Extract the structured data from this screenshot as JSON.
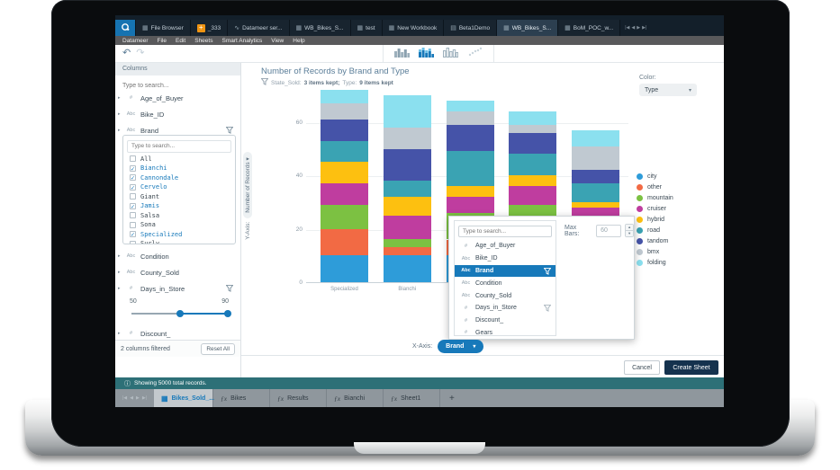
{
  "browser_tabs": {
    "items": [
      {
        "label": "",
        "icon": "datameer-logo",
        "active": false
      },
      {
        "label": "File Browser",
        "icon": "grid",
        "active": false
      },
      {
        "label": "_333",
        "icon": "plus-orange",
        "active": false
      },
      {
        "label": "Datameer ser...",
        "icon": "link",
        "active": false
      },
      {
        "label": "WB_Bikes_S...",
        "icon": "table",
        "active": false
      },
      {
        "label": "test",
        "icon": "table",
        "active": false
      },
      {
        "label": "New Workbook",
        "icon": "table",
        "active": false
      },
      {
        "label": "Beta1Demo",
        "icon": "chart",
        "active": false
      },
      {
        "label": "WB_Bikes_S...",
        "icon": "table",
        "active": true
      },
      {
        "label": "BoM_POC_w...",
        "icon": "table",
        "active": false
      }
    ],
    "nav_glyphs": [
      "|◀",
      "◀",
      "▶",
      "▶|"
    ]
  },
  "menu_bar": {
    "items": [
      "Datameer",
      "File",
      "Edit",
      "Sheets",
      "Smart Analytics",
      "View",
      "Help"
    ]
  },
  "toolbar": {
    "chart_types": [
      "grouped-bar",
      "stacked-bar",
      "column-chart",
      "scatter"
    ],
    "selected": "stacked-bar"
  },
  "columns_panel": {
    "header": "Columns",
    "search_placeholder": "Type to search...",
    "fields_top": [
      {
        "type": "#",
        "name": "Age_of_Buyer",
        "filtered": false
      },
      {
        "type": "Abc",
        "name": "Bike_ID",
        "filtered": false
      },
      {
        "type": "Abc",
        "name": "Brand",
        "filtered": true
      }
    ],
    "brand_filter": {
      "search_placeholder": "Type to search...",
      "options": [
        {
          "label": "All",
          "checked": false
        },
        {
          "label": "Bianchi",
          "checked": true
        },
        {
          "label": "Cannondale",
          "checked": true
        },
        {
          "label": "Cervelo",
          "checked": true
        },
        {
          "label": "Giant",
          "checked": false
        },
        {
          "label": "Jamis",
          "checked": true
        },
        {
          "label": "Salsa",
          "checked": false
        },
        {
          "label": "Sona",
          "checked": false
        },
        {
          "label": "Specialized",
          "checked": true
        },
        {
          "label": "Surly",
          "checked": false
        }
      ]
    },
    "fields_bottom": [
      {
        "type": "Abc",
        "name": "Condition",
        "filtered": false
      },
      {
        "type": "Abc",
        "name": "County_Sold",
        "filtered": false
      },
      {
        "type": "#",
        "name": "Days_in_Store",
        "filtered": true
      }
    ],
    "slider": {
      "min_label": "50",
      "max_label": "90"
    },
    "field_partial": {
      "type": "#",
      "name": "Discount_"
    },
    "footer": {
      "status": "2 columns filtered",
      "reset_label": "Reset All"
    }
  },
  "chart": {
    "title": "Number of Records by Brand and Type",
    "filter_note_parts": [
      {
        "t": "State_Sold:",
        "b": false
      },
      {
        "t": "3 items kept;",
        "b": true
      },
      {
        "t": "Type:",
        "b": false
      },
      {
        "t": "9 items kept",
        "b": true
      }
    ],
    "y_axis_label": "Y-Axis:",
    "y_axis_value": "Number of Records ▾",
    "color_label": "Color:",
    "color_value": "Type",
    "x_axis_label": "X-Axis:",
    "x_axis_value": "Brand"
  },
  "chart_data": {
    "type": "bar",
    "stacked": true,
    "title": "Number of Records by Brand and Type",
    "xlabel": "Brand",
    "ylabel": "Number of Records",
    "categories": [
      "Specialized",
      "Bianchi",
      "Cannondale",
      "Cervelo",
      "Jamis"
    ],
    "visible_category_labels": [
      "Specialized",
      "Bianchi"
    ],
    "y_ticks": [
      0,
      20,
      40,
      60
    ],
    "ylim": [
      0,
      75
    ],
    "grid": true,
    "legend_position": "right",
    "series": [
      {
        "name": "city",
        "color": "#2e9cd9",
        "values": [
          10,
          10,
          10,
          10,
          10
        ]
      },
      {
        "name": "other",
        "color": "#f26a44",
        "values": [
          10,
          3,
          6,
          6,
          5
        ]
      },
      {
        "name": "mountain",
        "color": "#7cc142",
        "values": [
          9,
          3,
          10,
          13,
          8
        ]
      },
      {
        "name": "cruiser",
        "color": "#bf3d9f",
        "values": [
          8,
          9,
          6,
          7,
          5
        ]
      },
      {
        "name": "hybrid",
        "color": "#fdc010",
        "values": [
          8,
          7,
          4,
          4,
          2
        ]
      },
      {
        "name": "road",
        "color": "#3aa3b3",
        "values": [
          8,
          6,
          13,
          8,
          7
        ]
      },
      {
        "name": "tandom",
        "color": "#4553a8",
        "values": [
          8,
          12,
          10,
          8,
          5
        ]
      },
      {
        "name": "bmx",
        "color": "#c0c9d1",
        "values": [
          6,
          8,
          5,
          3,
          9
        ]
      },
      {
        "name": "folding",
        "color": "#8be0ef",
        "values": [
          5,
          12,
          4,
          5,
          6
        ]
      }
    ],
    "totals": [
      72,
      70,
      68,
      64,
      57
    ]
  },
  "popup": {
    "search_placeholder": "Type to search...",
    "fields": [
      {
        "type": "#",
        "name": "Age_of_Buyer",
        "selected": false,
        "filtered": false
      },
      {
        "type": "Abc",
        "name": "Bike_ID",
        "selected": false,
        "filtered": false
      },
      {
        "type": "Abc",
        "name": "Brand",
        "selected": true,
        "filtered": true
      },
      {
        "type": "Abc",
        "name": "Condition",
        "selected": false,
        "filtered": false
      },
      {
        "type": "Abc",
        "name": "County_Sold",
        "selected": false,
        "filtered": false
      },
      {
        "type": "#",
        "name": "Days_in_Store",
        "selected": false,
        "filtered": true
      },
      {
        "type": "#",
        "name": "Discount_",
        "selected": false,
        "filtered": false
      },
      {
        "type": "#",
        "name": "Gears",
        "selected": false,
        "filtered": false
      }
    ],
    "max_bars_label": "Max Bars:",
    "max_bars_value": "60"
  },
  "dialog_footer": {
    "cancel_label": "Cancel",
    "create_label": "Create Sheet"
  },
  "status_bar": {
    "text": "Showing 5000 total records."
  },
  "sheet_tabs": {
    "tabs": [
      {
        "label": "Bikes_Sold_...",
        "active": true,
        "icon": "locked-sheet"
      },
      {
        "label": "Bikes",
        "active": false,
        "icon": "fx"
      },
      {
        "label": "Results",
        "active": false,
        "icon": "fx"
      },
      {
        "label": "Bianchi",
        "active": false,
        "icon": "fx"
      },
      {
        "label": "Sheet1",
        "active": false,
        "icon": "fx"
      }
    ],
    "add_label": "+",
    "nav_glyphs": [
      "|◀",
      "◀",
      "▶",
      "▶|"
    ]
  },
  "icons": {
    "undo": "↶",
    "redo": "↷",
    "info": "ⓘ",
    "caret_down": "▾"
  }
}
